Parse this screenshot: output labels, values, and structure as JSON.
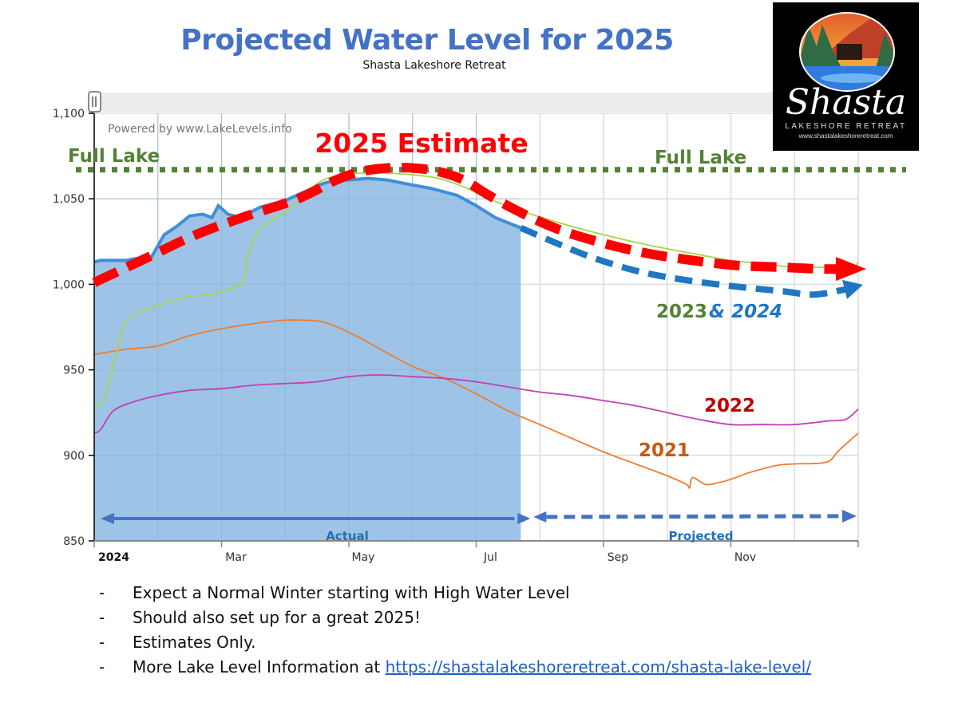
{
  "header": {
    "title": "Projected Water Level for 2025",
    "subtitle": "Shasta Lakeshore Retreat"
  },
  "logo": {
    "brand": "Shasta",
    "tagline": "LAKESHORE RETREAT",
    "url": "www.shastalakeshoreretreat.com"
  },
  "colors": {
    "title": "#4472c4",
    "actual_fill": "#9dc3e6",
    "actual_line": "#3f8fd6",
    "estimate_2025": "#ff0000",
    "series_2023": "#a6d64a",
    "series_2021": "#ed7d31",
    "series_2022": "#c33fb5",
    "full_lake": "#548235",
    "arrow_blue": "#4472c4",
    "proj_2024": "#1f77c4"
  },
  "bullets": [
    {
      "text": "Expect a Normal Winter starting with High Water Level"
    },
    {
      "text": "Should also set up for a great 2025!"
    },
    {
      "text": "Estimates Only."
    },
    {
      "text": "More Lake Level Information at ",
      "link": "https://shastalakeshoreretreat.com/shasta-lake-level/"
    }
  ],
  "chart_data": {
    "type": "line",
    "title": "Projected Water Level for 2025",
    "watermark": "Powered by www.LakeLevels.info",
    "xlabel": "",
    "ylabel": "",
    "x_unit": "month of year (0 = Jan 1, 12 = Dec 31)",
    "xlim": [
      0,
      12
    ],
    "ylim": [
      850,
      1100
    ],
    "yticks": [
      850,
      900,
      950,
      1000,
      1050,
      1100
    ],
    "ytick_labels": [
      "850",
      "900",
      "950",
      "1,000",
      "1,050",
      "1,100"
    ],
    "xticks": [
      {
        "x": 0,
        "label": "2024",
        "bold": true
      },
      {
        "x": 2,
        "label": "Mar"
      },
      {
        "x": 4,
        "label": "May"
      },
      {
        "x": 6,
        "label": "Jul"
      },
      {
        "x": 8,
        "label": "Sep"
      },
      {
        "x": 10,
        "label": "Nov"
      }
    ],
    "grid": true,
    "annotations": {
      "full_lake_level": 1067,
      "full_lake_labels": [
        "Full Lake",
        "Full Lake"
      ],
      "estimate_label": "2025 Estimate",
      "label_2023": "2023",
      "label_amp_2024": "& 2024",
      "label_2022": "2022",
      "label_2021": "2021",
      "actual_label": "Actual",
      "projected_label": "Projected",
      "actual_end_x": 6.7
    },
    "series": [
      {
        "name": "2024 Actual",
        "style": "area",
        "x": [
          0,
          0.1,
          0.5,
          0.8,
          0.9,
          1.1,
          1.3,
          1.5,
          1.7,
          1.85,
          1.95,
          2.1,
          2.3,
          2.6,
          3.0,
          3.3,
          3.6,
          3.8,
          4.0,
          4.3,
          4.6,
          5.0,
          5.3,
          5.7,
          6.0,
          6.3,
          6.7
        ],
        "y": [
          1013,
          1014,
          1014,
          1016,
          1016,
          1029,
          1034,
          1040,
          1041,
          1039,
          1046,
          1041,
          1039,
          1045,
          1049,
          1054,
          1059,
          1061,
          1061,
          1062,
          1061,
          1058,
          1056,
          1052,
          1046,
          1039,
          1033
        ]
      },
      {
        "name": "2024 Projected",
        "style": "dashed-arrow",
        "x": [
          6.7,
          7.2,
          7.8,
          8.5,
          9.2,
          10.0,
          10.8,
          11.3,
          11.8
        ],
        "y": [
          1033,
          1025,
          1016,
          1008,
          1003,
          999,
          996,
          994,
          997
        ]
      },
      {
        "name": "2025 Estimate",
        "style": "dashed-arrow",
        "x": [
          0,
          0.8,
          1.6,
          2.4,
          3.2,
          3.8,
          4.2,
          4.6,
          5.0,
          5.4,
          5.8,
          6.2,
          6.7,
          7.3,
          8.0,
          8.7,
          9.4,
          10.1,
          10.8,
          11.4,
          11.8
        ],
        "y": [
          1001,
          1015,
          1029,
          1040,
          1050,
          1061,
          1066,
          1068,
          1068,
          1066,
          1061,
          1052,
          1042,
          1032,
          1024,
          1018,
          1014,
          1011,
          1010,
          1009,
          1009
        ]
      },
      {
        "name": "2023",
        "style": "line",
        "x": [
          0,
          0.1,
          0.2,
          0.35,
          0.5,
          0.8,
          1.2,
          1.5,
          1.8,
          2.1,
          2.35,
          2.4,
          2.6,
          3.0,
          3.3,
          3.6,
          3.9,
          4.2,
          4.6,
          5.0,
          5.4,
          5.8,
          6.2,
          6.7,
          7.3,
          8.0,
          8.7,
          9.4,
          10.0,
          10.5,
          11.0,
          11.5,
          11.9,
          12.0
        ],
        "y": [
          929,
          930,
          938,
          960,
          978,
          985,
          990,
          993,
          994,
          997,
          1002,
          1015,
          1032,
          1042,
          1053,
          1061,
          1064,
          1065,
          1065,
          1064,
          1062,
          1057,
          1050,
          1043,
          1036,
          1029,
          1023,
          1018,
          1014,
          1012,
          1010,
          1010,
          1010,
          1013
        ]
      },
      {
        "name": "2021",
        "style": "line",
        "x": [
          0,
          0.5,
          1.0,
          1.5,
          2.0,
          2.5,
          3.0,
          3.3,
          3.6,
          4.0,
          4.5,
          5.0,
          5.5,
          6.0,
          6.5,
          7.0,
          7.5,
          8.0,
          8.5,
          9.0,
          9.3,
          9.35,
          9.4,
          9.6,
          9.8,
          10.0,
          10.3,
          10.7,
          11.0,
          11.5,
          11.7,
          12.0
        ],
        "y": [
          959,
          962,
          964,
          970,
          974,
          977,
          979,
          979,
          978,
          972,
          962,
          952,
          945,
          936,
          926,
          918,
          910,
          902,
          895,
          888,
          883,
          881,
          887,
          883,
          884,
          886,
          890,
          894,
          895,
          896,
          903,
          913
        ]
      },
      {
        "name": "2022",
        "style": "line",
        "x": [
          0,
          0.1,
          0.3,
          0.6,
          1.0,
          1.5,
          2.0,
          2.5,
          3.0,
          3.5,
          4.0,
          4.5,
          5.0,
          5.5,
          6.0,
          6.5,
          7.0,
          7.5,
          8.0,
          8.5,
          9.0,
          9.5,
          10.0,
          10.5,
          11.0,
          11.5,
          11.8,
          12.0
        ],
        "y": [
          913,
          915,
          926,
          931,
          935,
          938,
          939,
          941,
          942,
          943,
          946,
          947,
          946,
          945,
          943,
          940,
          937,
          935,
          932,
          929,
          925,
          921,
          918,
          918,
          918,
          920,
          921,
          927
        ]
      }
    ]
  }
}
